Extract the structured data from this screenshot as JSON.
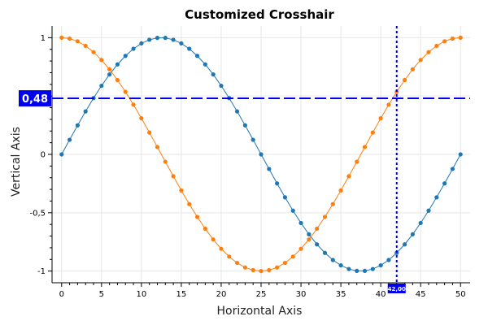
{
  "chart_data": {
    "type": "scatter",
    "title": "Customized Crosshair",
    "xlabel": "Horizontal Axis",
    "ylabel": "Vertical Axis",
    "xlim": [
      -1.2,
      51.2
    ],
    "ylim": [
      -1.1,
      1.1
    ],
    "grid": true,
    "x_ticks": [
      0,
      5,
      10,
      15,
      20,
      25,
      30,
      35,
      40,
      45,
      50
    ],
    "x_tick_labels": [
      "0",
      "5",
      "10",
      "15",
      "20",
      "25",
      "30",
      "35",
      "40",
      "45",
      "50"
    ],
    "y_ticks": [
      1,
      0.5,
      0,
      -0.5,
      -1
    ],
    "y_tick_labels": [
      "1",
      "0,5",
      "0",
      "-0,5",
      "-1"
    ],
    "x": [
      0,
      1,
      2,
      3,
      4,
      5,
      6,
      7,
      8,
      9,
      10,
      11,
      12,
      13,
      14,
      15,
      16,
      17,
      18,
      19,
      20,
      21,
      22,
      23,
      24,
      25,
      26,
      27,
      28,
      29,
      30,
      31,
      32,
      33,
      34,
      35,
      36,
      37,
      38,
      39,
      40,
      41,
      42,
      43,
      44,
      45,
      46,
      47,
      48,
      49,
      50
    ],
    "series": [
      {
        "color": "#1f77b4",
        "values": [
          0,
          0.125,
          0.249,
          0.368,
          0.482,
          0.588,
          0.685,
          0.771,
          0.844,
          0.905,
          0.951,
          0.982,
          0.998,
          0.998,
          0.982,
          0.951,
          0.905,
          0.844,
          0.771,
          0.685,
          0.588,
          0.482,
          0.368,
          0.249,
          0.125,
          0,
          -0.125,
          -0.249,
          -0.368,
          -0.482,
          -0.588,
          -0.685,
          -0.771,
          -0.844,
          -0.905,
          -0.951,
          -0.982,
          -0.998,
          -0.998,
          -0.982,
          -0.951,
          -0.905,
          -0.844,
          -0.771,
          -0.685,
          -0.588,
          -0.482,
          -0.368,
          -0.249,
          -0.125,
          0
        ]
      },
      {
        "color": "#ff7f0e",
        "values": [
          1,
          0.992,
          0.969,
          0.93,
          0.876,
          0.809,
          0.729,
          0.637,
          0.536,
          0.426,
          0.309,
          0.187,
          0.063,
          -0.063,
          -0.187,
          -0.309,
          -0.426,
          -0.536,
          -0.637,
          -0.729,
          -0.809,
          -0.876,
          -0.93,
          -0.969,
          -0.992,
          -1,
          -0.992,
          -0.969,
          -0.93,
          -0.876,
          -0.809,
          -0.729,
          -0.637,
          -0.536,
          -0.426,
          -0.309,
          -0.187,
          -0.063,
          0.063,
          0.187,
          0.309,
          0.426,
          0.536,
          0.637,
          0.729,
          0.809,
          0.876,
          0.93,
          0.969,
          0.992,
          1
        ]
      }
    ],
    "crosshair": {
      "x": 42,
      "y": 0.48,
      "x_label": "42,00",
      "y_label": "0,48",
      "color": "#0000ee"
    }
  }
}
